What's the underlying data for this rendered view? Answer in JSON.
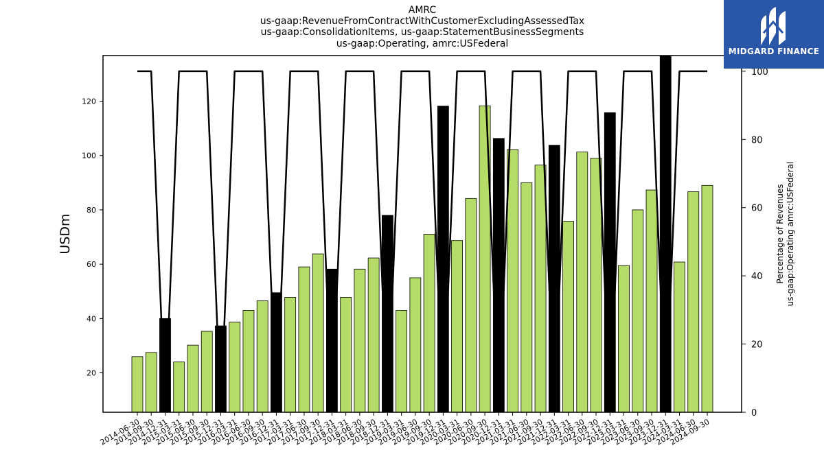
{
  "titles": [
    "AMRC",
    "us-gaap:RevenueFromContractWithCustomerExcludingAssessedTax",
    "us-gaap:ConsolidationItems, us-gaap:StatementBusinessSegments",
    "us-gaap:Operating, amrc:USFederal"
  ],
  "logo": {
    "text": "MIDGARD FINANCE",
    "icon": "midgard-logo-icon",
    "bg_color": "#2a56a8"
  },
  "colors": {
    "bar_green": "#b5dc68",
    "bar_black": "#000000",
    "line": "#000000"
  },
  "chart_data": {
    "type": "bar",
    "categories": [
      "2014-06-30",
      "2014-09-30",
      "2014-12-31",
      "2015-03-31",
      "2015-06-30",
      "2015-09-30",
      "2015-12-31",
      "2016-03-31",
      "2016-06-30",
      "2016-09-30",
      "2016-12-31",
      "2017-03-31",
      "2017-06-30",
      "2017-09-30",
      "2017-12-31",
      "2018-03-31",
      "2018-06-30",
      "2018-09-30",
      "2018-12-31",
      "2019-03-31",
      "2019-06-30",
      "2019-09-30",
      "2019-12-31",
      "2020-03-31",
      "2020-06-30",
      "2020-09-30",
      "2020-12-31",
      "2021-03-31",
      "2021-06-30",
      "2021-09-30",
      "2021-12-31",
      "2022-03-31",
      "2022-06-30",
      "2022-09-30",
      "2022-12-31",
      "2023-03-31",
      "2023-06-30",
      "2023-09-30",
      "2023-12-31",
      "2024-03-31",
      "2024-06-30",
      "2024-09-30"
    ],
    "values": [
      26.0,
      27.5,
      40.0,
      24.0,
      30.2,
      35.3,
      37.3,
      38.7,
      43.0,
      46.5,
      49.5,
      47.8,
      59.0,
      63.8,
      58.2,
      47.8,
      58.2,
      62.3,
      78.0,
      43.0,
      55.0,
      71.0,
      118.2,
      68.7,
      84.2,
      118.3,
      106.3,
      102.2,
      90.0,
      96.5,
      103.8,
      75.8,
      101.3,
      99.0,
      115.8,
      59.5,
      80.0,
      87.3,
      137.0,
      60.8,
      86.7,
      89.0
    ],
    "bar_color_keys": [
      "g",
      "g",
      "k",
      "g",
      "g",
      "g",
      "k",
      "g",
      "g",
      "g",
      "k",
      "g",
      "g",
      "g",
      "k",
      "g",
      "g",
      "g",
      "k",
      "g",
      "g",
      "g",
      "k",
      "g",
      "g",
      "g",
      "k",
      "g",
      "g",
      "g",
      "k",
      "g",
      "g",
      "g",
      "k",
      "g",
      "g",
      "g",
      "k",
      "g",
      "g",
      "g"
    ],
    "percent_series": [
      100,
      100,
      0,
      100,
      100,
      100,
      0,
      100,
      100,
      100,
      0,
      100,
      100,
      100,
      0,
      100,
      100,
      100,
      0,
      100,
      100,
      100,
      0,
      100,
      100,
      100,
      0,
      100,
      100,
      100,
      0,
      100,
      100,
      100,
      0,
      100,
      100,
      100,
      0,
      100,
      100,
      100
    ],
    "ylabel": "USDm",
    "y2label_lines": [
      "Percentage of Revenues",
      "us-gaap:Operating amrc:USFederal"
    ],
    "ylim": [
      5.5,
      136.8
    ],
    "y_ticks": [
      20,
      40,
      60,
      80,
      100,
      120
    ],
    "y2lim": [
      0,
      104.6
    ],
    "y2_ticks": [
      0,
      20,
      40,
      60,
      80,
      100
    ],
    "grid": false,
    "legend": "none"
  }
}
